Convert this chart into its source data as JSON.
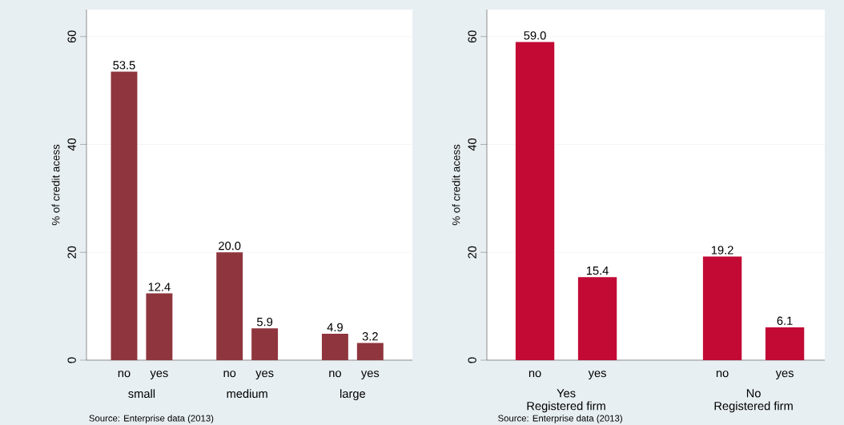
{
  "chart_data": [
    {
      "type": "bar",
      "ylabel": "% of credit acess",
      "categories": [
        "no",
        "yes",
        "no",
        "yes",
        "no",
        "yes"
      ],
      "values": [
        53.5,
        12.4,
        20.0,
        5.9,
        4.9,
        3.2
      ],
      "value_labels": [
        "53.5",
        "12.4",
        "20.0",
        "5.9",
        "4.9",
        "3.2"
      ],
      "color": "#8f353e",
      "ylim": [
        0,
        65
      ],
      "yticks": [
        0,
        20,
        40,
        60
      ],
      "grid": "y",
      "annotations": [
        "small",
        "medium",
        "large",
        "Source:  Enterprise data (2013)"
      ]
    },
    {
      "type": "bar",
      "ylabel": "% of credit acess",
      "categories": [
        "no",
        "yes",
        "no",
        "yes"
      ],
      "values": [
        59.0,
        15.4,
        19.2,
        6.1
      ],
      "value_labels": [
        "59.0",
        "15.4",
        "19.2",
        "6.1"
      ],
      "color": "#c20a35",
      "ylim": [
        0,
        65
      ],
      "yticks": [
        0,
        20,
        40,
        60
      ],
      "grid": "y",
      "annotations": [
        "Yes",
        "Registered firm",
        "No",
        "Registered firm",
        "Source:  Enterprise data (2013)"
      ]
    }
  ]
}
